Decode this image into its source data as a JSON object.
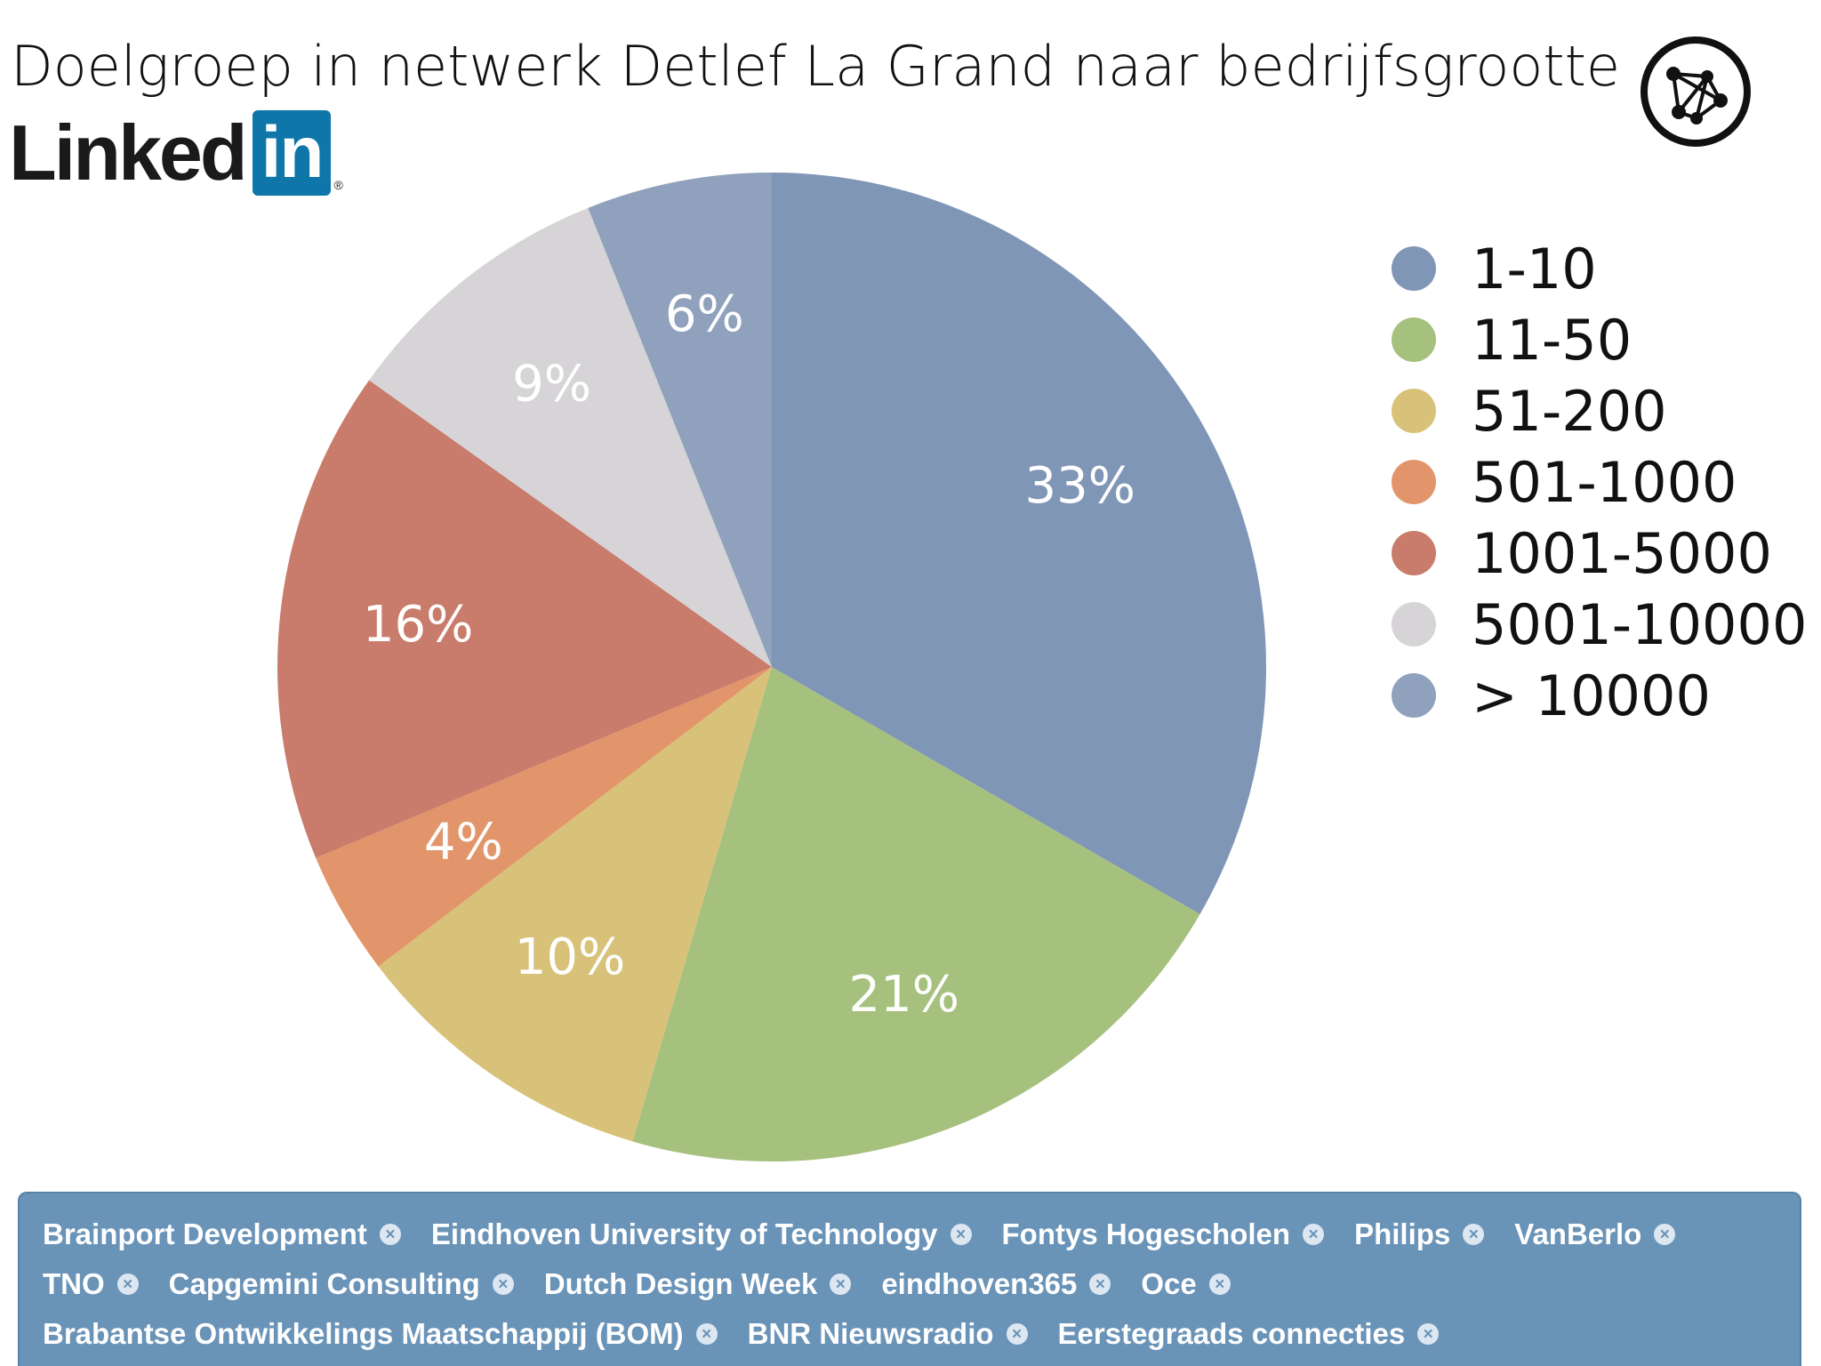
{
  "header": {
    "title": "Doelgroep in netwerk Detlef La Grand naar bedrijfsgrootte",
    "logo": {
      "word": "Linked",
      "box": "in",
      "reg": "®"
    },
    "corner_icon": "network-graph-icon"
  },
  "chart_data": {
    "type": "pie",
    "title": "Doelgroep in netwerk Detlef La Grand naar bedrijfsgrootte",
    "categories": [
      "1-10",
      "11-50",
      "51-200",
      "501-1000",
      "1001-5000",
      "5001-10000",
      "> 10000"
    ],
    "values": [
      33,
      21,
      10,
      4,
      16,
      9,
      6
    ],
    "labels": [
      "33%",
      "21%",
      "10%",
      "4%",
      "16%",
      "9%",
      "6%"
    ],
    "colors": [
      "#8096b6",
      "#a6c07d",
      "#d8c27a",
      "#e2956a",
      "#c97c6b",
      "#d6d4d7",
      "#8fa1bd"
    ],
    "legend_position": "right",
    "start_angle_deg": 0,
    "direction": "clockwise"
  },
  "legend": [
    {
      "label": "1-10",
      "color": "#8096b6"
    },
    {
      "label": "11-50",
      "color": "#a6c07d"
    },
    {
      "label": "51-200",
      "color": "#d8c27a"
    },
    {
      "label": "501-1000",
      "color": "#e2956a"
    },
    {
      "label": "1001-5000",
      "color": "#c97c6b"
    },
    {
      "label": "5001-10000",
      "color": "#d6d4d7"
    },
    {
      "label": "> 10000",
      "color": "#8fa1bd"
    }
  ],
  "filters": {
    "rows": [
      [
        "Brainport Development",
        "Eindhoven University of Technology",
        "Fontys Hogescholen",
        "Philips",
        "VanBerlo"
      ],
      [
        "TNO",
        "Capgemini Consulting",
        "Dutch Design Week",
        "eindhoven365",
        "Oce"
      ],
      [
        "Brabantse Ontwikkelings Maatschappij (BOM)",
        "BNR Nieuwsradio",
        "Eerstegraads connecties"
      ]
    ],
    "close_glyph": "×",
    "bar_color": "#6a93b8"
  }
}
